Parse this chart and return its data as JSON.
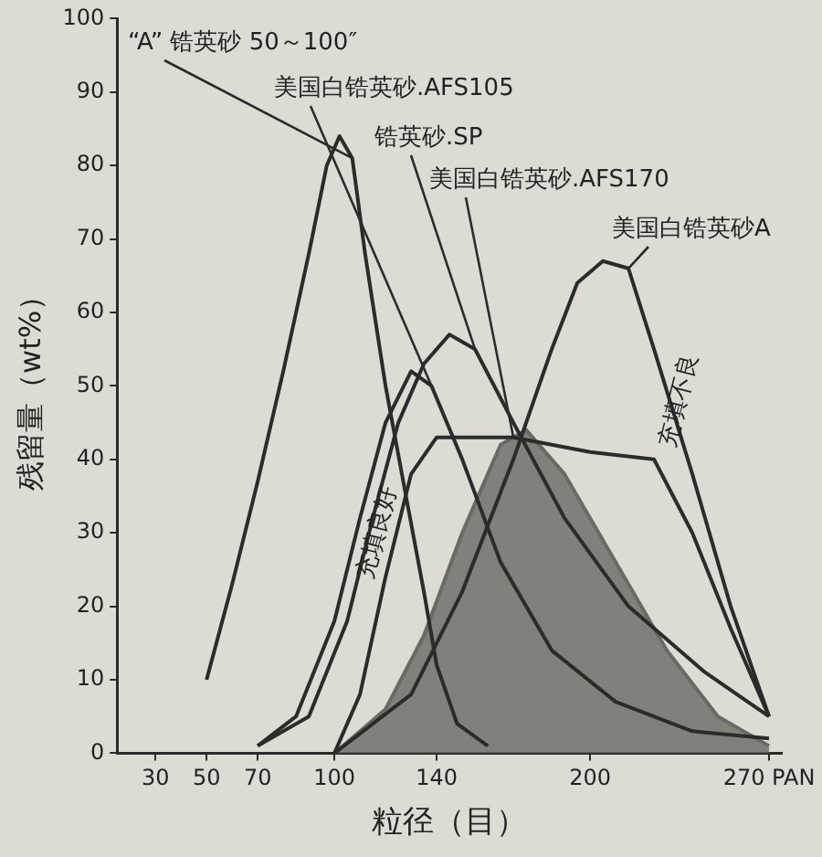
{
  "chart_data": {
    "type": "line",
    "xlabel": "粒径（目）",
    "ylabel": "残留量（wt%）",
    "xlim": [
      15,
      275
    ],
    "ylim": [
      0,
      100
    ],
    "xticks": [
      30,
      50,
      70,
      100,
      140,
      200,
      {
        "value": 270,
        "label": "270 PAN"
      }
    ],
    "yticks": [
      0,
      10,
      20,
      30,
      40,
      50,
      60,
      70,
      80,
      90,
      100
    ],
    "grid": false,
    "legend": false,
    "marker": "none",
    "line_style": "solid",
    "annotations": [
      {
        "text": "充填良好",
        "x": 117,
        "y": 30
      },
      {
        "text": "充填不良",
        "x": 235,
        "y": 48
      }
    ],
    "series": [
      {
        "name": "“A” 锆英砂 50～100″",
        "type": "line",
        "color": "#2b2b2b",
        "x": [
          50,
          60,
          70,
          80,
          90,
          97,
          102,
          107,
          112,
          120,
          128,
          135,
          140,
          148,
          160
        ],
        "values": [
          10,
          23,
          37,
          52,
          68,
          80,
          84,
          81,
          68,
          50,
          35,
          22,
          12,
          4,
          1
        ]
      },
      {
        "name": "美国白锆英砂.AFS105",
        "type": "line",
        "color": "#2b2b2b",
        "x": [
          70,
          85,
          100,
          110,
          120,
          130,
          138,
          150,
          165,
          185,
          210,
          240,
          270
        ],
        "values": [
          1,
          5,
          18,
          32,
          45,
          52,
          50,
          40,
          26,
          14,
          7,
          3,
          2
        ]
      },
      {
        "name": "锆英砂.SP",
        "type": "line",
        "color": "#2b2b2b",
        "x": [
          70,
          90,
          105,
          115,
          125,
          135,
          145,
          155,
          170,
          190,
          215,
          245,
          270
        ],
        "values": [
          1,
          5,
          18,
          32,
          45,
          53,
          57,
          55,
          45,
          32,
          20,
          11,
          5
        ]
      },
      {
        "name": "美国白锆英砂.AFS170",
        "type": "line",
        "color": "#2b2b2b",
        "x": [
          100,
          110,
          120,
          130,
          140,
          170,
          200,
          225,
          240,
          255,
          270
        ],
        "values": [
          0,
          8,
          24,
          38,
          43,
          43,
          41,
          40,
          30,
          17,
          5
        ]
      },
      {
        "name": "美国白锆英砂A",
        "type": "line",
        "color": "#2b2b2b",
        "x": [
          100,
          130,
          150,
          170,
          185,
          195,
          205,
          215,
          225,
          240,
          255,
          270
        ],
        "values": [
          0,
          8,
          22,
          40,
          55,
          64,
          67,
          66,
          55,
          38,
          20,
          5
        ]
      },
      {
        "type": "area",
        "color": "#6a6a64",
        "x": [
          100,
          120,
          135,
          150,
          165,
          175,
          190,
          210,
          230,
          250,
          270
        ],
        "values": [
          0,
          6,
          16,
          30,
          42,
          44,
          38,
          26,
          14,
          5,
          1
        ]
      }
    ]
  }
}
